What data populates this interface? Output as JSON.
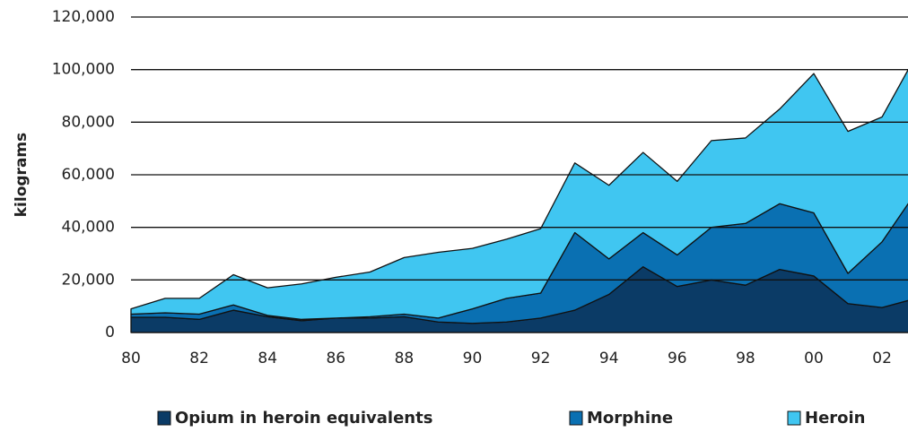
{
  "chart_data": {
    "type": "stacked_area",
    "y_label": "kilograms",
    "categories": [
      "80",
      null,
      "82",
      null,
      "84",
      null,
      "86",
      null,
      "88",
      null,
      "90",
      null,
      "92",
      null,
      "94",
      null,
      "96",
      null,
      "98",
      null,
      "00",
      null,
      "02",
      null
    ],
    "series": [
      {
        "name": "Opium in heroin equivalents",
        "color": "#0b3b66",
        "values": [
          5800,
          5800,
          5000,
          8500,
          6000,
          4500,
          5500,
          5500,
          6000,
          4000,
          3500,
          4000,
          5500,
          8500,
          14500,
          25000,
          17500,
          20000,
          18000,
          24000,
          21500,
          11000,
          9500,
          13000
        ]
      },
      {
        "name": "Morphine",
        "color": "#0a70b2",
        "values": [
          1200,
          1700,
          2000,
          2000,
          500,
          500,
          0,
          500,
          1000,
          1500,
          5500,
          9000,
          9500,
          29500,
          13500,
          13000,
          12000,
          20000,
          23500,
          25000,
          24000,
          11500,
          25000,
          40500
        ]
      },
      {
        "name": "Heroin",
        "color": "#40c6f1",
        "values": [
          2000,
          5500,
          6000,
          11500,
          10500,
          13500,
          15500,
          17000,
          21500,
          25000,
          23000,
          22500,
          24500,
          26500,
          28000,
          30500,
          28000,
          33000,
          32500,
          36000,
          53000,
          54000,
          47500,
          52000
        ]
      }
    ],
    "ylim": [
      0,
      120000
    ],
    "yticks": [
      0,
      {
        "value": 20000,
        "label": "20,000"
      },
      {
        "value": 40000,
        "label": "40,000"
      },
      {
        "value": 60000,
        "label": "60,000"
      },
      {
        "value": 80000,
        "label": "80,000"
      },
      {
        "value": 100000,
        "label": "100,000"
      },
      {
        "value": 120000,
        "label": "120,000"
      }
    ],
    "grid": true
  }
}
